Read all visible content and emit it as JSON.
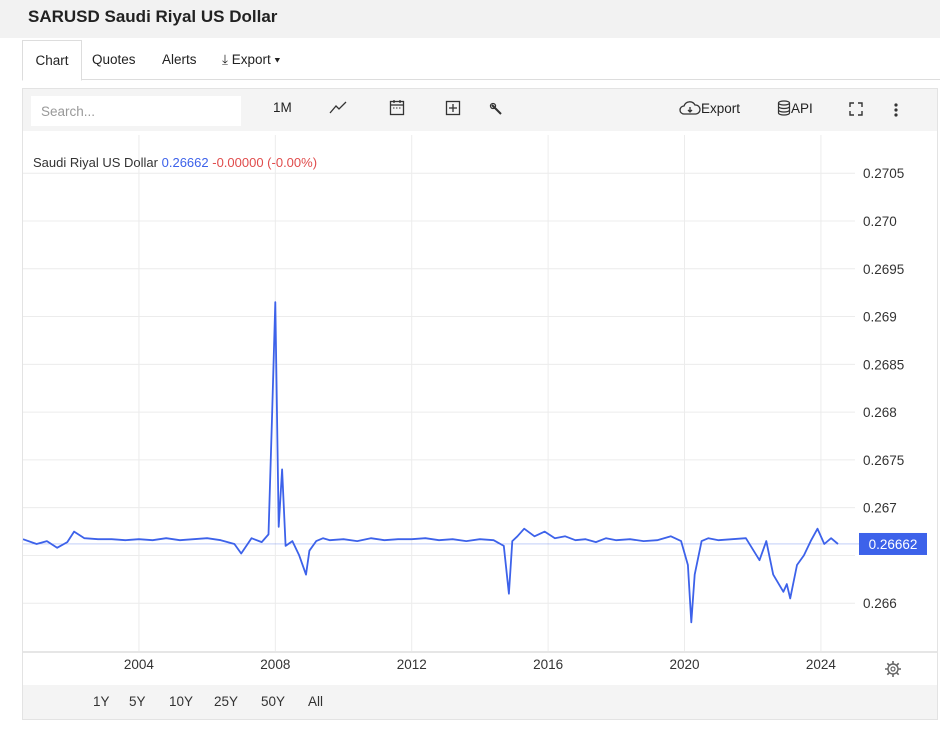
{
  "page": {
    "title": "SARUSD Saudi Riyal US Dollar"
  },
  "tabs": {
    "chart": "Chart",
    "quotes": "Quotes",
    "alerts": "Alerts",
    "export": "⤓ Export ▾"
  },
  "toolbar": {
    "search_placeholder": "Search...",
    "interval": "1M",
    "export_label": "Export",
    "api_label": "API"
  },
  "legend": {
    "name": "Saudi Riyal US Dollar",
    "price": "0.26662",
    "change": "-0.00000 (-0.00%)"
  },
  "ranges": [
    "1Y",
    "5Y",
    "10Y",
    "25Y",
    "50Y",
    "All"
  ],
  "colors": {
    "line": "#3d62ea",
    "change": "#e04c4c",
    "grid": "#ececec"
  },
  "chart_data": {
    "type": "line",
    "title": "",
    "xlabel": "",
    "ylabel": "",
    "xlim": [
      2000.6,
      2025.0
    ],
    "ylim": [
      0.2655,
      0.2709
    ],
    "x_ticks": [
      2004,
      2008,
      2012,
      2016,
      2020,
      2024
    ],
    "y_ticks": [
      0.266,
      0.2665,
      0.267,
      0.2675,
      0.268,
      0.2685,
      0.269,
      0.2695,
      0.27,
      0.2705
    ],
    "y_tick_labels": [
      "0.266",
      "",
      "0.267",
      "0.2675",
      "0.268",
      "0.2685",
      "0.269",
      "0.2695",
      "0.270",
      "0.2705"
    ],
    "last_value_label": "0.26662",
    "grid": true,
    "series": [
      {
        "name": "Saudi Riyal US Dollar",
        "x": [
          2000.6,
          2001.0,
          2001.3,
          2001.6,
          2001.9,
          2002.1,
          2002.4,
          2002.8,
          2003.2,
          2003.6,
          2004.0,
          2004.4,
          2004.8,
          2005.2,
          2005.6,
          2006.0,
          2006.4,
          2006.8,
          2007.0,
          2007.3,
          2007.6,
          2007.8,
          2007.9,
          2008.0,
          2008.1,
          2008.2,
          2008.3,
          2008.5,
          2008.7,
          2008.9,
          2009.0,
          2009.2,
          2009.4,
          2009.6,
          2010.0,
          2010.4,
          2010.8,
          2011.2,
          2011.6,
          2012.0,
          2012.4,
          2012.8,
          2013.2,
          2013.6,
          2014.0,
          2014.4,
          2014.7,
          2014.85,
          2014.95,
          2015.1,
          2015.3,
          2015.6,
          2015.9,
          2016.2,
          2016.5,
          2016.8,
          2017.1,
          2017.4,
          2017.7,
          2018.0,
          2018.4,
          2018.8,
          2019.2,
          2019.6,
          2019.9,
          2020.1,
          2020.2,
          2020.3,
          2020.5,
          2020.7,
          2021.0,
          2021.4,
          2021.8,
          2022.2,
          2022.4,
          2022.6,
          2022.9,
          2023.0,
          2023.1,
          2023.3,
          2023.5,
          2023.7,
          2023.9,
          2024.1,
          2024.3,
          2024.5
        ],
        "values": [
          0.26667,
          0.26662,
          0.26665,
          0.26658,
          0.26664,
          0.26675,
          0.26668,
          0.26667,
          0.26667,
          0.26666,
          0.26667,
          0.26666,
          0.26668,
          0.26666,
          0.26667,
          0.26668,
          0.26666,
          0.26662,
          0.26652,
          0.26668,
          0.26664,
          0.26672,
          0.2679,
          0.26915,
          0.2668,
          0.2674,
          0.2666,
          0.26665,
          0.2665,
          0.2663,
          0.26655,
          0.26665,
          0.26668,
          0.26666,
          0.26667,
          0.26665,
          0.26668,
          0.26666,
          0.26667,
          0.26667,
          0.26668,
          0.26666,
          0.26667,
          0.26665,
          0.26667,
          0.26666,
          0.2666,
          0.2661,
          0.26665,
          0.2667,
          0.26678,
          0.2667,
          0.26675,
          0.26668,
          0.2667,
          0.26666,
          0.26667,
          0.26664,
          0.26668,
          0.26666,
          0.26667,
          0.26665,
          0.26666,
          0.2667,
          0.26665,
          0.2664,
          0.2658,
          0.2663,
          0.26665,
          0.26668,
          0.26666,
          0.26667,
          0.26668,
          0.26645,
          0.26665,
          0.2663,
          0.26612,
          0.2662,
          0.26605,
          0.2664,
          0.2665,
          0.26665,
          0.26678,
          0.26662,
          0.26668,
          0.26662
        ]
      }
    ]
  }
}
